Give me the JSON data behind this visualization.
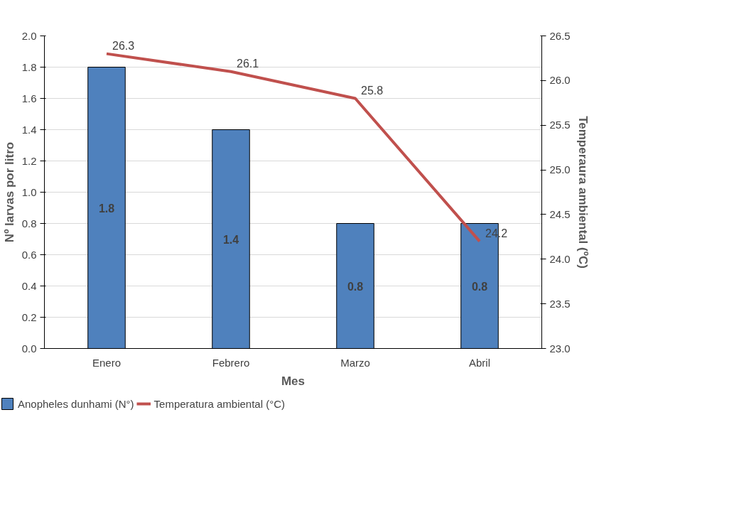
{
  "chart_data": {
    "type": "bar",
    "xlabel": "Mes",
    "ylabel": "Nº larvas por litro",
    "y2label": "Temperaura ambiental (ºC)",
    "categories": [
      "Enero",
      "Febrero",
      "Marzo",
      "Abril"
    ],
    "series": [
      {
        "name": "Anopheles dunhami (N°)",
        "color": "#4f81bd",
        "values": [
          1.8,
          1.4,
          0.8,
          0.8
        ]
      },
      {
        "name": "Temperatura ambiental (°C)",
        "type": "line",
        "axis": "y2",
        "color": "#c0504d",
        "values": [
          26.3,
          26.1,
          25.8,
          24.2
        ]
      }
    ],
    "ylim": [
      0,
      2.0
    ],
    "yticks": [
      {
        "value": 0,
        "label": "0.0"
      },
      0.2,
      0.4,
      0.6,
      0.8,
      {
        "value": 1,
        "label": "1.0"
      },
      1.2,
      1.4,
      1.6,
      1.8,
      {
        "value": 2,
        "label": "2.0"
      }
    ],
    "y2lim": [
      23.0,
      26.5
    ],
    "y2ticks": [
      {
        "value": 23,
        "label": "23.0"
      },
      23.5,
      {
        "value": 24,
        "label": "24.0"
      },
      24.5,
      {
        "value": 25,
        "label": "25.0"
      },
      25.5,
      {
        "value": 26,
        "label": "26.0"
      },
      26.5
    ],
    "grid": "y",
    "legend": "bottom",
    "data_labels": true
  }
}
